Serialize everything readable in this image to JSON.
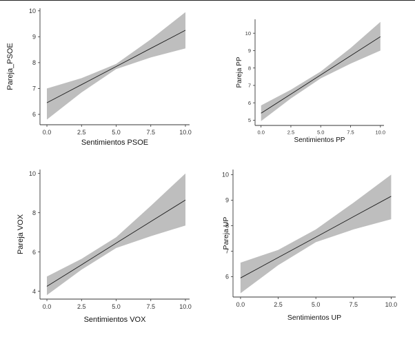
{
  "chart_data": [
    {
      "type": "line",
      "title": "",
      "xlabel": "Sentimientos PSOE",
      "ylabel": "Pareja_PSOE",
      "xlim": [
        -0.5,
        10.3
      ],
      "ylim": [
        5.6,
        10.1
      ],
      "xticks": [
        0.0,
        2.5,
        5.0,
        7.5,
        10.0
      ],
      "xtick_labels": [
        "0.0",
        "2.5",
        "5.0",
        "7.5",
        "10.0"
      ],
      "yticks": [
        6,
        7,
        8,
        9,
        10
      ],
      "ytick_labels": [
        "6",
        "7",
        "8",
        "9",
        "10"
      ],
      "series": [
        {
          "name": "fit",
          "x": [
            0,
            2.5,
            5,
            7.5,
            10
          ],
          "y": [
            6.45,
            7.15,
            7.85,
            8.55,
            9.25
          ],
          "lower": [
            5.8,
            6.85,
            7.75,
            8.2,
            8.55
          ],
          "upper": [
            7.0,
            7.4,
            7.95,
            8.9,
            9.95
          ]
        }
      ]
    },
    {
      "type": "line",
      "title": "",
      "xlabel": "Sentimientos PP",
      "ylabel": "Pareja PP",
      "xlim": [
        -0.5,
        10.3
      ],
      "ylim": [
        4.7,
        10.8
      ],
      "xticks": [
        0.0,
        2.5,
        5.0,
        7.5,
        10.0
      ],
      "xtick_labels": [
        "0.0",
        "2.5",
        "5.0",
        "7.5",
        "10.0"
      ],
      "yticks": [
        5,
        6,
        7,
        8,
        9,
        10
      ],
      "ytick_labels": [
        "5",
        "6",
        "7",
        "8",
        "9",
        "10"
      ],
      "series": [
        {
          "name": "fit",
          "x": [
            0,
            2.5,
            5,
            7.5,
            10
          ],
          "y": [
            5.4,
            6.5,
            7.6,
            8.7,
            9.8
          ],
          "lower": [
            4.95,
            6.25,
            7.4,
            8.25,
            9.0
          ],
          "upper": [
            5.85,
            6.75,
            7.8,
            9.15,
            10.65
          ]
        }
      ]
    },
    {
      "type": "line",
      "title": "",
      "xlabel": "Sentimientos VOX",
      "ylabel": "Pareja VOX",
      "xlim": [
        -0.5,
        10.3
      ],
      "ylim": [
        3.6,
        10.2
      ],
      "xticks": [
        0.0,
        2.5,
        5.0,
        7.5,
        10.0
      ],
      "xtick_labels": [
        "0.0",
        "2.5",
        "5.0",
        "7.5",
        "10.0"
      ],
      "yticks": [
        4,
        6,
        8,
        10
      ],
      "ytick_labels": [
        "4",
        "6",
        "8",
        "10"
      ],
      "series": [
        {
          "name": "fit",
          "x": [
            0,
            2.5,
            5,
            7.5,
            10
          ],
          "y": [
            4.25,
            5.35,
            6.45,
            7.55,
            8.65
          ],
          "lower": [
            3.8,
            5.1,
            6.2,
            6.8,
            7.35
          ],
          "upper": [
            4.75,
            5.65,
            6.75,
            8.35,
            10.0
          ]
        }
      ]
    },
    {
      "type": "line",
      "title": "",
      "xlabel": "Sentimientos UP",
      "ylabel": "Pareja UP",
      "xlim": [
        -0.5,
        10.3
      ],
      "ylim": [
        5.2,
        10.2
      ],
      "xticks": [
        0.0,
        2.5,
        5.0,
        7.5,
        10.0
      ],
      "xtick_labels": [
        "0.0",
        "2.5",
        "5.0",
        "7.5",
        "10.0"
      ],
      "yticks": [
        6,
        7,
        8,
        9,
        10
      ],
      "ytick_labels": [
        "6",
        "7",
        "8",
        "9",
        "10"
      ],
      "series": [
        {
          "name": "fit",
          "x": [
            0,
            2.5,
            5,
            7.5,
            10
          ],
          "y": [
            5.95,
            6.75,
            7.55,
            8.35,
            9.15
          ],
          "lower": [
            5.35,
            6.45,
            7.35,
            7.85,
            8.25
          ],
          "upper": [
            6.55,
            7.05,
            7.85,
            8.9,
            10.0
          ]
        }
      ]
    }
  ]
}
